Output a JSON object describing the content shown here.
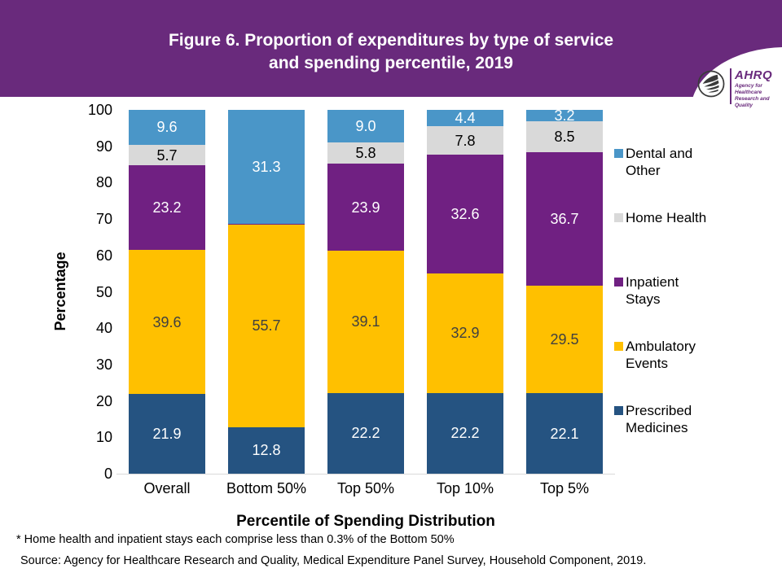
{
  "header": {
    "title_line1": "Figure 6. Proportion of expenditures by type of service",
    "title_line2": "and spending percentile, 2019",
    "logo": {
      "org_abbr": "AHRQ",
      "tagline_line1": "Agency for Healthcare",
      "tagline_line2": "Research and Quality"
    }
  },
  "chart_data": {
    "type": "bar",
    "stacked": true,
    "title": "Figure 6. Proportion of expenditures by type of service and spending percentile, 2019",
    "categories": [
      "Overall",
      "Bottom 50%",
      "Top 50%",
      "Top 10%",
      "Top 5%"
    ],
    "series": [
      {
        "name": "Prescribed Medicines",
        "color": "#255381",
        "label_color": "#FFFFFF",
        "values": [
          21.9,
          12.8,
          22.2,
          22.2,
          22.1
        ]
      },
      {
        "name": "Ambulatory Events",
        "color": "#FFC000",
        "label_color": "#404040",
        "values": [
          39.6,
          55.7,
          39.1,
          32.9,
          29.5
        ]
      },
      {
        "name": "Inpatient Stays",
        "color": "#702082",
        "label_color": "#FFFFFF",
        "values": [
          23.2,
          0.15,
          23.9,
          32.6,
          36.7
        ]
      },
      {
        "name": "Home Health",
        "color": "#D9D9D9",
        "label_color": "#000000",
        "values": [
          5.7,
          0.15,
          5.8,
          7.8,
          8.5
        ]
      },
      {
        "name": "Dental and Other",
        "color": "#4A96C8",
        "label_color": "#FFFFFF",
        "values": [
          9.6,
          31.3,
          9.0,
          4.4,
          3.2
        ]
      }
    ],
    "xlabel": "Percentile of Spending Distribution",
    "ylabel": "Percentage",
    "ylim": [
      0,
      100
    ],
    "yticks": [
      0,
      10,
      20,
      30,
      40,
      50,
      60,
      70,
      80,
      90,
      100
    ],
    "grid": false,
    "legend_position": "right",
    "legend_order": [
      "Dental and Other",
      "Home Health",
      "Inpatient Stays",
      "Ambulatory Events",
      "Prescribed Medicines"
    ],
    "min_label_value": 1
  },
  "footnote": "* Home health and inpatient stays each comprise less than 0.3% of the Bottom 50%",
  "source": "Source: Agency for Healthcare Research and Quality, Medical Expenditure Panel Survey, Household Component, 2019."
}
